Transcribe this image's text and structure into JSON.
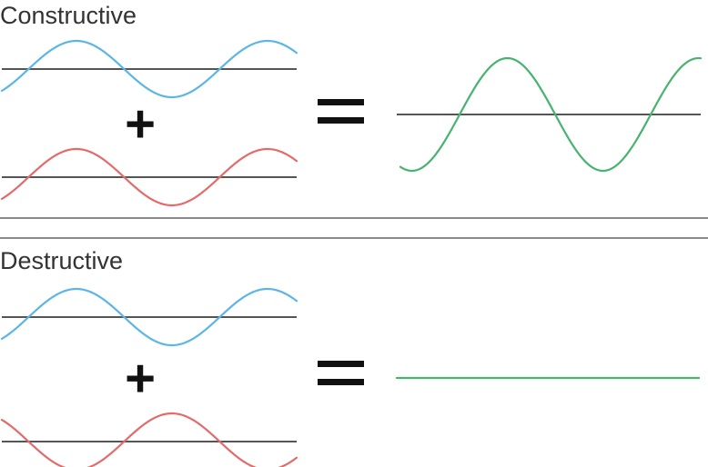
{
  "panels": [
    {
      "id": "constructive",
      "title": "Constructive",
      "plus": "+",
      "equals": "=",
      "wave_a_color": "#5bb6e6",
      "wave_b_color": "#e56a6a",
      "result_color": "#46b36e",
      "wave_a_amplitude": 1,
      "wave_b_amplitude": 1,
      "wave_b_phase_shift_cycles": 0,
      "result_amplitude": 2
    },
    {
      "id": "destructive",
      "title": "Destructive",
      "plus": "+",
      "equals": "=",
      "wave_a_color": "#5bb6e6",
      "wave_b_color": "#e56a6a",
      "result_color": "#46b36e",
      "wave_a_amplitude": 1,
      "wave_b_amplitude": 1,
      "wave_b_phase_shift_cycles": 0.5,
      "result_amplitude": 0
    }
  ]
}
